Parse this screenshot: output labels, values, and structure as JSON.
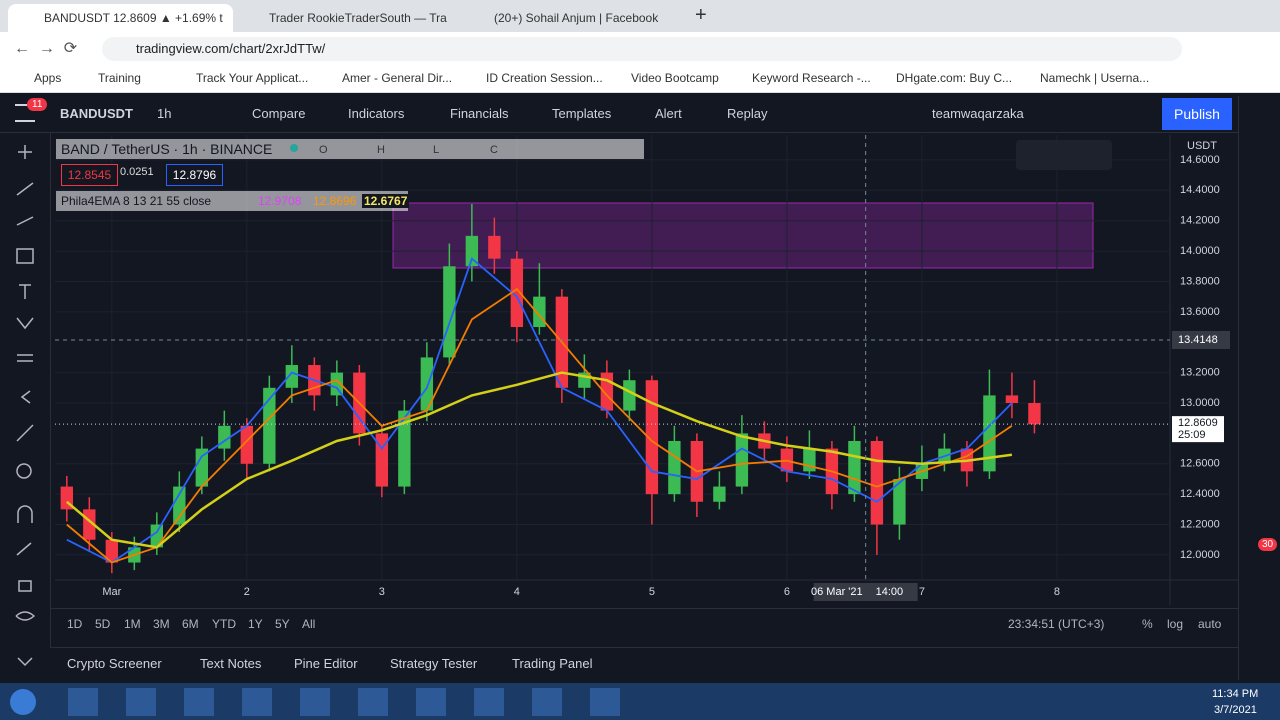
{
  "browser": {
    "tabs": [
      "BANDUSDT 12.8609 ▲ +1.69% t",
      "Trader RookieTraderSouth — Tra",
      "(20+) Sohail Anjum | Facebook"
    ],
    "url": "tradingview.com/chart/2xrJdTTw/",
    "bookmarks": [
      "Apps",
      "Training",
      "Track Your Applicat...",
      "Amer - General Dir...",
      "ID Creation Session...",
      "Video Bootcamp",
      "Keyword Research -...",
      "DHgate.com: Buy C...",
      "Namechk | Userna..."
    ]
  },
  "toolbar": {
    "notifications": 11,
    "symbol": "BANDUSDT",
    "interval": "1h",
    "items": [
      "Compare",
      "Indicators",
      "Financials",
      "Templates",
      "Alert",
      "Replay"
    ],
    "user": "teamwaqarzaka",
    "publish": "Publish"
  },
  "chart_data": {
    "type": "candlestick",
    "title": "BAND / TetherUS · 1h · BINANCE",
    "currency": "USDT",
    "ohlc_letters": [
      "O",
      "H",
      "L",
      "C"
    ],
    "quote": [
      12.8545,
      0.0251,
      12.8796
    ],
    "indicator": {
      "label": "Phila4EMA 8 13 21 55 close",
      "values": [
        12.9708,
        12.8696,
        12.6767
      ],
      "colors": [
        "#e040fb",
        "#ff9800",
        "#f5e663"
      ]
    },
    "up_color": "#3cba54",
    "down_color": "#f23645",
    "x": [
      -8,
      -4,
      0,
      4,
      8,
      12,
      16,
      20,
      24,
      28,
      32,
      36,
      40,
      44,
      48,
      52,
      56,
      60,
      64,
      68,
      72,
      76,
      80,
      84,
      88,
      92,
      96,
      100,
      104,
      108,
      112,
      116,
      120,
      124,
      128,
      132,
      136,
      140,
      144,
      148,
      152,
      156,
      160,
      164
    ],
    "open": [
      12.45,
      12.3,
      12.1,
      11.95,
      12.05,
      12.2,
      12.45,
      12.7,
      12.85,
      12.6,
      13.1,
      13.25,
      13.05,
      13.2,
      12.8,
      12.45,
      12.95,
      13.3,
      13.9,
      14.1,
      13.95,
      13.5,
      13.7,
      13.1,
      13.2,
      12.95,
      13.15,
      12.4,
      12.75,
      12.35,
      12.45,
      12.8,
      12.7,
      12.55,
      12.7,
      12.4,
      12.75,
      12.2,
      12.5,
      12.6,
      12.7,
      12.55,
      13.05,
      13.0
    ],
    "high": [
      12.52,
      12.38,
      12.15,
      12.12,
      12.28,
      12.55,
      12.78,
      12.95,
      12.9,
      13.18,
      13.38,
      13.3,
      13.28,
      13.25,
      12.85,
      13.02,
      13.4,
      14.05,
      14.31,
      14.22,
      14.0,
      13.92,
      13.75,
      13.32,
      13.28,
      13.22,
      13.18,
      12.85,
      12.8,
      12.55,
      12.92,
      12.88,
      12.78,
      12.82,
      12.75,
      12.85,
      12.78,
      12.58,
      12.72,
      12.8,
      12.75,
      13.22,
      13.2,
      13.15
    ],
    "low": [
      12.22,
      12.02,
      11.88,
      11.9,
      12.0,
      12.15,
      12.4,
      12.62,
      12.5,
      12.55,
      13.0,
      12.95,
      12.98,
      12.72,
      12.38,
      12.4,
      12.88,
      13.25,
      13.8,
      13.85,
      13.4,
      13.45,
      13.0,
      13.02,
      12.9,
      12.88,
      12.2,
      12.35,
      12.25,
      12.3,
      12.4,
      12.62,
      12.48,
      12.5,
      12.3,
      12.35,
      12.0,
      12.1,
      12.42,
      12.55,
      12.45,
      12.5,
      12.9,
      12.8
    ],
    "close": [
      12.3,
      12.1,
      11.95,
      12.05,
      12.2,
      12.45,
      12.7,
      12.85,
      12.6,
      13.1,
      13.25,
      13.05,
      13.2,
      12.8,
      12.45,
      12.95,
      13.3,
      13.9,
      14.1,
      13.95,
      13.5,
      13.7,
      13.1,
      13.2,
      12.95,
      13.15,
      12.4,
      12.75,
      12.35,
      12.45,
      12.8,
      12.7,
      12.55,
      12.7,
      12.4,
      12.75,
      12.2,
      12.5,
      12.6,
      12.7,
      12.55,
      13.05,
      13.0,
      12.86
    ],
    "lines": [
      {
        "color": "#2962ff",
        "x": [
          -8,
          0,
          8,
          16,
          24,
          32,
          40,
          48,
          56,
          64,
          72,
          80,
          88,
          96,
          104,
          112,
          120,
          128,
          136,
          144,
          152,
          160
        ],
        "values": [
          12.1,
          11.95,
          12.15,
          12.65,
          12.85,
          13.2,
          13.1,
          12.7,
          13.1,
          13.95,
          13.7,
          13.1,
          12.95,
          12.55,
          12.5,
          12.7,
          12.55,
          12.5,
          12.35,
          12.6,
          12.7,
          13.0
        ]
      },
      {
        "color": "#f57c00",
        "x": [
          -8,
          0,
          8,
          16,
          24,
          32,
          40,
          48,
          56,
          64,
          72,
          80,
          88,
          96,
          104,
          112,
          120,
          128,
          136,
          144,
          152,
          160
        ],
        "values": [
          12.2,
          11.95,
          12.05,
          12.45,
          12.75,
          13.05,
          13.15,
          12.85,
          12.95,
          13.55,
          13.75,
          13.4,
          13.05,
          12.75,
          12.55,
          12.6,
          12.62,
          12.55,
          12.45,
          12.55,
          12.65,
          12.85
        ]
      },
      {
        "color": "#d4d017",
        "x": [
          -8,
          0,
          8,
          16,
          24,
          32,
          40,
          48,
          56,
          64,
          72,
          80,
          88,
          96,
          104,
          112,
          120,
          128,
          136,
          144,
          152,
          160
        ],
        "values": [
          12.35,
          12.1,
          12.05,
          12.3,
          12.5,
          12.62,
          12.75,
          12.82,
          12.92,
          13.05,
          13.12,
          13.2,
          13.15,
          13.0,
          12.88,
          12.78,
          12.72,
          12.68,
          12.62,
          12.6,
          12.62,
          12.66
        ]
      }
    ],
    "xlim": [
      -10.1,
      188.1
    ],
    "ylim": [
      11.835,
      14.764
    ],
    "xticks": [
      {
        "value": 0,
        "label": "Mar"
      },
      {
        "value": 24,
        "label": "2"
      },
      {
        "value": 48,
        "label": "3"
      },
      {
        "value": 72,
        "label": "4"
      },
      {
        "value": 96,
        "label": "5"
      },
      {
        "value": 120,
        "label": "6"
      },
      {
        "value": 144,
        "label": "7"
      },
      {
        "value": 168,
        "label": "8"
      }
    ],
    "yticks": [
      {
        "value": 12,
        "label": "12.0000"
      },
      {
        "value": 12.2,
        "label": "12.2000"
      },
      {
        "value": 12.4,
        "label": "12.4000"
      },
      {
        "value": 12.6,
        "label": "12.6000"
      },
      {
        "value": 13,
        "label": "13.0000"
      },
      {
        "value": 13.2,
        "label": "13.2000"
      },
      {
        "value": 13.6,
        "label": "13.6000"
      },
      {
        "value": 13.8,
        "label": "13.8000"
      },
      {
        "value": 14,
        "label": "14.0000"
      },
      {
        "value": 14.2,
        "label": "14.2000"
      },
      {
        "value": 14.4,
        "label": "14.4000"
      },
      {
        "value": 14.6,
        "label": "14.6000"
      }
    ],
    "grid": true,
    "last_price": {
      "value": 12.8609,
      "countdown": "25:09"
    },
    "crosshair": {
      "price": 13.4148,
      "x": 134,
      "date": "06 Mar '21",
      "time": "14:00"
    }
  },
  "timeframes": [
    "1D",
    "5D",
    "1M",
    "3M",
    "6M",
    "YTD",
    "1Y",
    "5Y",
    "All"
  ],
  "clock": "23:34:51 (UTC+3)",
  "scale_options": [
    "%",
    "log",
    "auto"
  ],
  "bottom_tabs": [
    "Crypto Screener",
    "Text Notes",
    "Pine Editor",
    "Strategy Tester",
    "Trading Panel"
  ],
  "sidebar_badge": 30,
  "taskbar": {
    "time": "11:34 PM",
    "date": "3/7/2021"
  }
}
